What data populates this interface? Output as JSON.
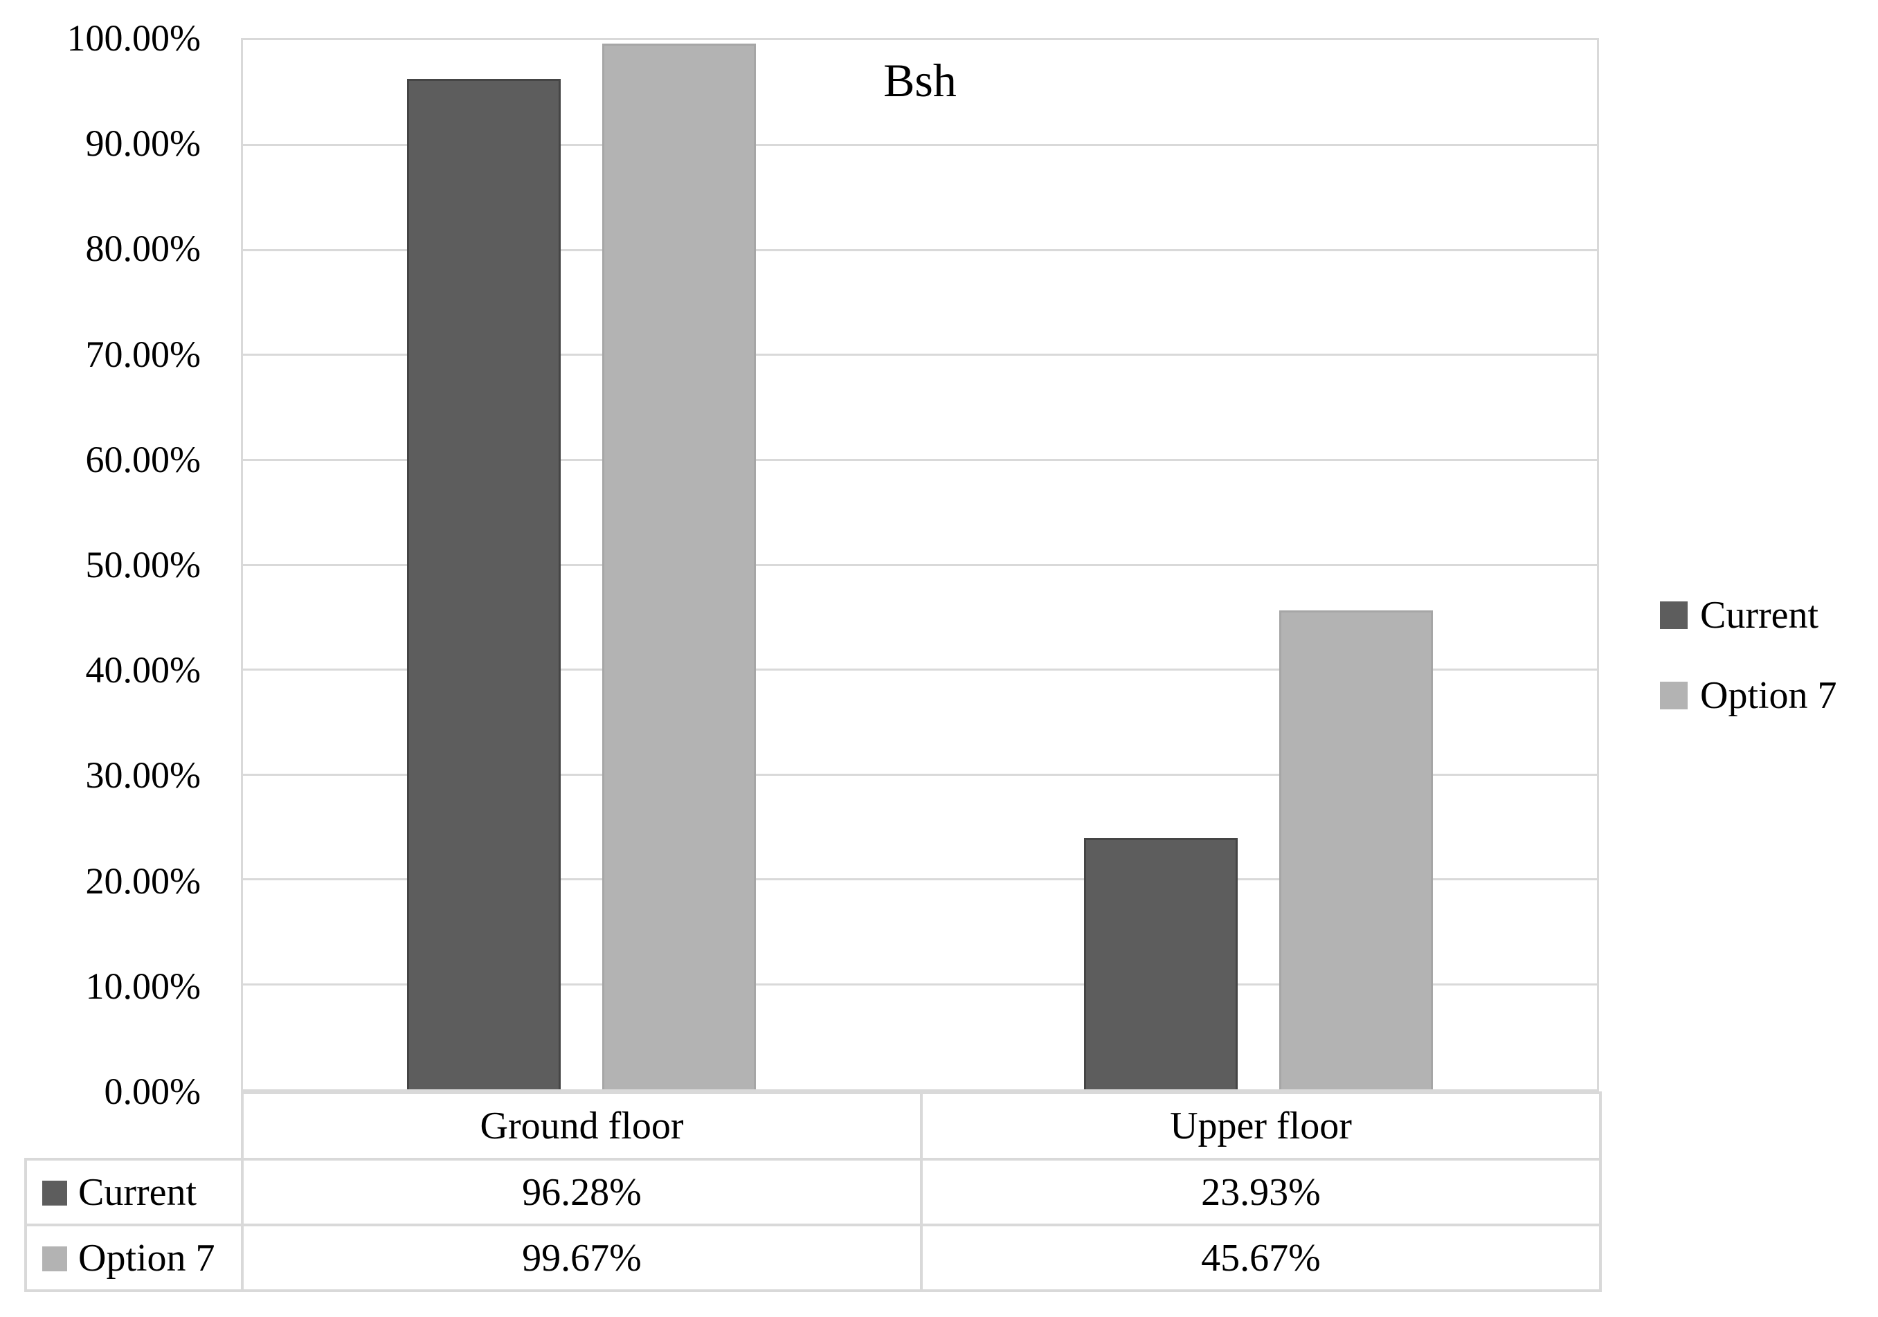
{
  "chart_data": {
    "type": "bar",
    "title": "Bsh",
    "categories": [
      "Ground floor",
      "Upper floor"
    ],
    "series": [
      {
        "name": "Current",
        "color": "#5d5d5d",
        "border_color": "#454545",
        "values": [
          96.28,
          23.93
        ],
        "display_values": [
          "96.28%",
          "23.93%"
        ]
      },
      {
        "name": "Option 7",
        "color": "#b3b3b3",
        "border_color": "#a6a6a6",
        "values": [
          99.67,
          45.67
        ],
        "display_values": [
          "99.67%",
          "45.67%"
        ]
      }
    ],
    "y_axis": {
      "min": 0,
      "max": 100,
      "step": 10,
      "tick_labels": [
        "100.00%",
        "90.00%",
        "80.00%",
        "70.00%",
        "60.00%",
        "50.00%",
        "40.00%",
        "30.00%",
        "20.00%",
        "10.00%",
        "0.00%"
      ]
    },
    "xlabel": "",
    "ylabel": "",
    "grid": true,
    "legend_position": "right",
    "colors": {
      "gridline": "#d9d9d9",
      "plot_border": "#d9d9d9",
      "table_border": "#d9d9d9",
      "text": "#000000",
      "background": "#ffffff"
    }
  },
  "legend": {
    "items": [
      {
        "label": "Current"
      },
      {
        "label": "Option 7"
      }
    ]
  },
  "data_table": {
    "header": [
      "Ground floor",
      "Upper floor"
    ],
    "rows": [
      {
        "label": "Current",
        "values": [
          "96.28%",
          "23.93%"
        ]
      },
      {
        "label": "Option 7",
        "values": [
          "99.67%",
          "45.67%"
        ]
      }
    ]
  }
}
